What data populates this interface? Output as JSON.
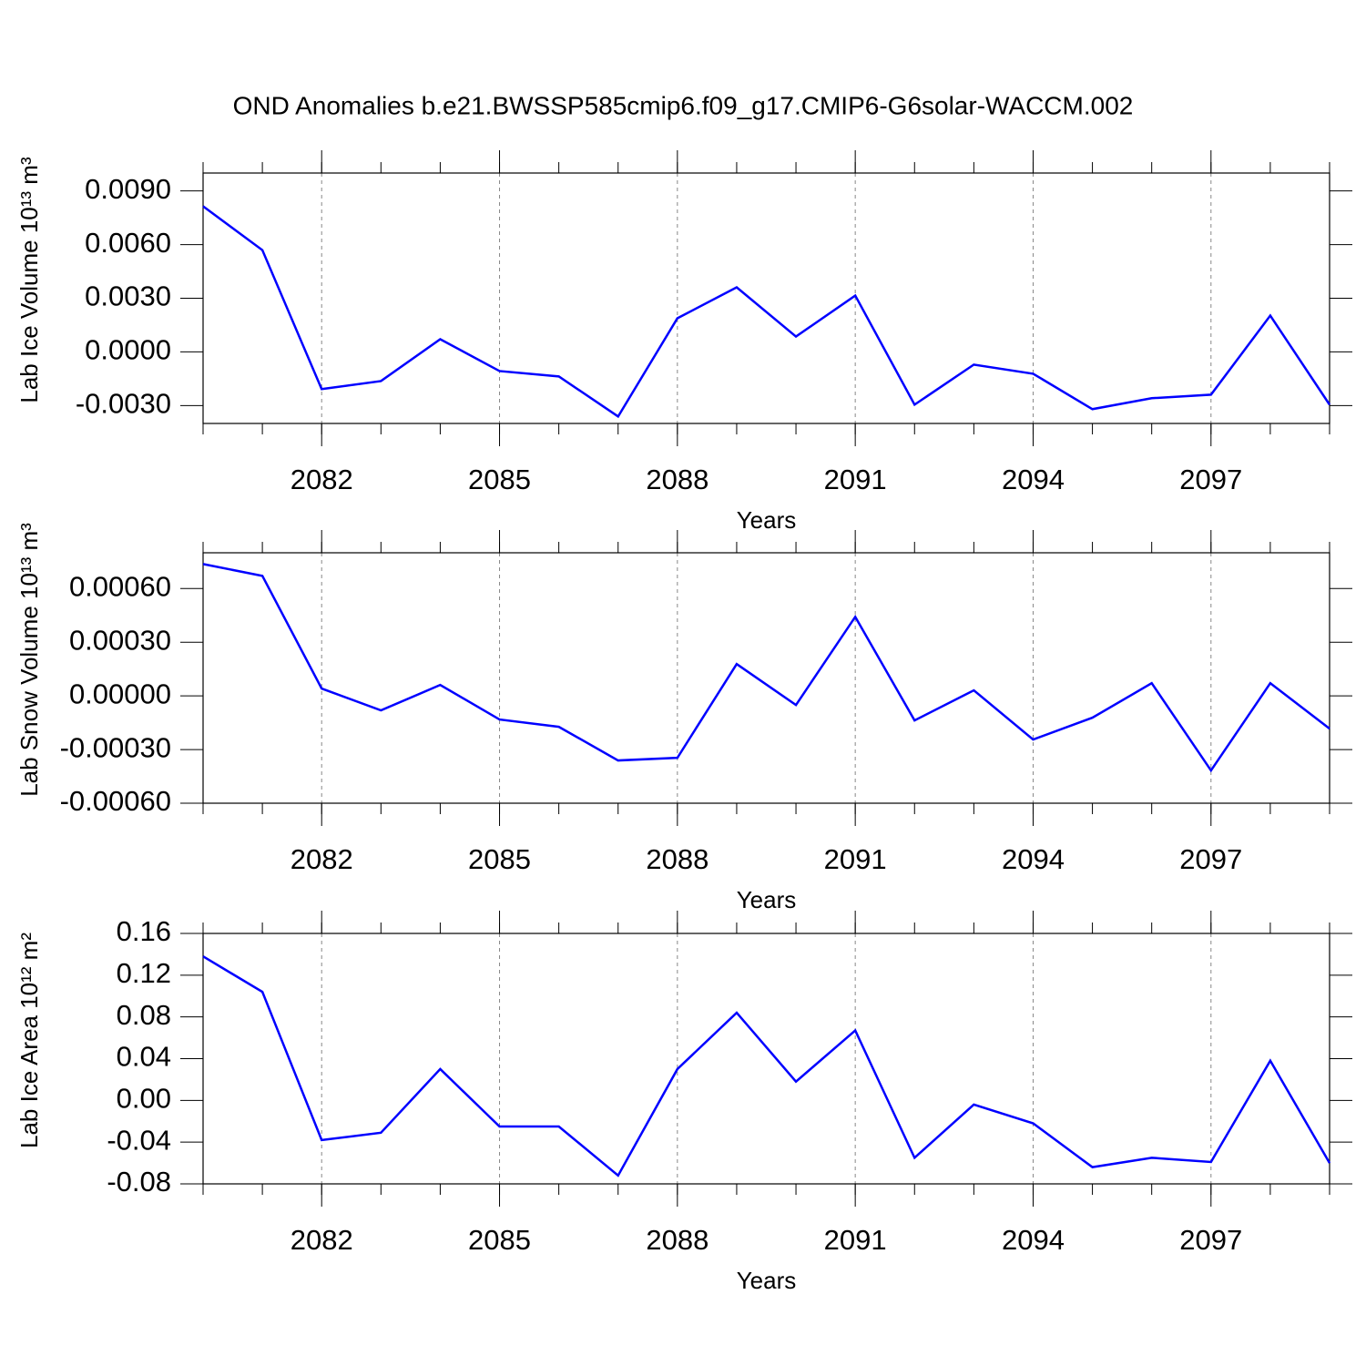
{
  "title": "OND Anomalies b.e21.BWSSP585cmip6.f09_g17.CMIP6-G6solar-WACCM.002",
  "chart_data": [
    {
      "type": "line",
      "x_label": "Years",
      "y_label": "Lab Ice Volume 10¹³ m³",
      "x": [
        2080,
        2081,
        2082,
        2083,
        2084,
        2085,
        2086,
        2087,
        2088,
        2089,
        2090,
        2091,
        2092,
        2093,
        2094,
        2095,
        2096,
        2097,
        2098,
        2099
      ],
      "xlim": [
        2080,
        2099
      ],
      "xticks": [
        2082,
        2085,
        2088,
        2091,
        2094,
        2097
      ],
      "ylim": [
        -0.004,
        0.01
      ],
      "yticks": [
        {
          "value": 0.009,
          "label": "0.0090"
        },
        {
          "value": 0.006,
          "label": "0.0060"
        },
        {
          "value": 0.003,
          "label": "0.0030"
        },
        {
          "value": 0,
          "label": "0.0000"
        },
        {
          "value": -0.003,
          "label": "-0.0030"
        }
      ],
      "grid": true,
      "series": [
        {
          "color": "#0000ff",
          "values": [
            0.00814,
            0.00569,
            -0.00208,
            -0.00163,
            0.00071,
            -0.00107,
            -0.00137,
            -0.00361,
            0.00188,
            0.00361,
            0.00086,
            0.00315,
            -0.00295,
            -0.00071,
            -0.00122,
            -0.0032,
            -0.00259,
            -0.00239,
            0.00203,
            -0.00295
          ]
        }
      ]
    },
    {
      "type": "line",
      "x_label": "Years",
      "y_label": "Lab Snow Volume 10¹³ m³",
      "x": [
        2080,
        2081,
        2082,
        2083,
        2084,
        2085,
        2086,
        2087,
        2088,
        2089,
        2090,
        2091,
        2092,
        2093,
        2094,
        2095,
        2096,
        2097,
        2098,
        2099
      ],
      "xlim": [
        2080,
        2099
      ],
      "xticks": [
        2082,
        2085,
        2088,
        2091,
        2094,
        2097
      ],
      "ylim": [
        -0.0006,
        0.0008
      ],
      "yticks": [
        {
          "value": 0.0006,
          "label": "0.00060"
        },
        {
          "value": 0.0003,
          "label": "0.00030"
        },
        {
          "value": 0,
          "label": "0.00000"
        },
        {
          "value": -0.0003,
          "label": "-0.00030"
        },
        {
          "value": -0.0006,
          "label": "-0.00060"
        }
      ],
      "grid": true,
      "series": [
        {
          "color": "#0000ff",
          "values": [
            0.000737,
            0.000671,
            4.1e-05,
            -8.1e-05,
            6.1e-05,
            -0.000132,
            -0.000173,
            -0.000361,
            -0.000346,
            0.000178,
            -5.1e-05,
            0.000442,
            -0.000137,
            3.1e-05,
            -0.000244,
            -0.000122,
            7.1e-05,
            -0.000417,
            7.1e-05,
            -0.000183
          ]
        }
      ]
    },
    {
      "type": "line",
      "x_label": "Years",
      "y_label": "Lab Ice Area 10¹² m²",
      "x": [
        2080,
        2081,
        2082,
        2083,
        2084,
        2085,
        2086,
        2087,
        2088,
        2089,
        2090,
        2091,
        2092,
        2093,
        2094,
        2095,
        2096,
        2097,
        2098,
        2099
      ],
      "xlim": [
        2080,
        2099
      ],
      "xticks": [
        2082,
        2085,
        2088,
        2091,
        2094,
        2097
      ],
      "ylim": [
        -0.08,
        0.16
      ],
      "yticks": [
        0.16,
        0.12,
        0.08,
        0.04,
        {
          "value": 0,
          "label": "0.00"
        },
        -0.04,
        -0.08
      ],
      "grid": true,
      "series": [
        {
          "color": "#0000ff",
          "values": [
            0.138,
            0.104,
            -0.038,
            -0.031,
            0.03,
            -0.025,
            -0.025,
            -0.072,
            0.03,
            0.084,
            0.018,
            0.067,
            -0.055,
            -0.004,
            -0.022,
            -0.064,
            -0.055,
            -0.059,
            0.038,
            -0.06
          ]
        }
      ]
    }
  ]
}
